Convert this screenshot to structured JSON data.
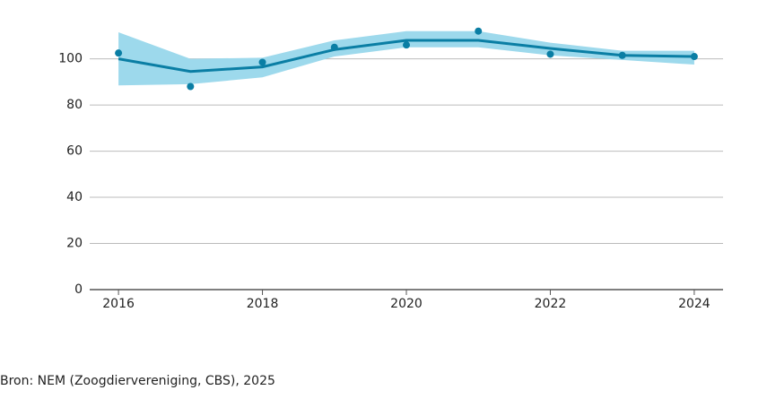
{
  "chart_data": {
    "type": "line",
    "x": [
      2016,
      2017,
      2018,
      2019,
      2020,
      2021,
      2022,
      2023,
      2024
    ],
    "trend": {
      "color": "#0a7ea4",
      "values": [
        100,
        94.5,
        96.5,
        104,
        108,
        108,
        104.5,
        101.5,
        101
      ]
    },
    "band": {
      "color": "#9dd9ec",
      "lower": [
        88.5,
        89,
        92,
        101,
        105,
        105,
        101.5,
        99.5,
        97.5
      ],
      "upper": [
        111.5,
        100,
        100.5,
        108,
        112,
        112,
        107,
        103.5,
        103.5
      ]
    },
    "points": {
      "color": "#0a7ea4",
      "values": [
        102.5,
        88,
        98.5,
        105,
        106,
        112,
        102,
        101.5,
        101
      ]
    },
    "xlim": [
      2015.6,
      2024.4
    ],
    "xticks": [
      2016,
      2018,
      2020,
      2022,
      2024
    ],
    "ylim": [
      0,
      115
    ],
    "yticks": [
      0,
      20,
      40,
      60,
      80,
      100
    ],
    "grid": true,
    "source": "Bron: NEM (Zoogdiervereniging, CBS), 2025"
  }
}
